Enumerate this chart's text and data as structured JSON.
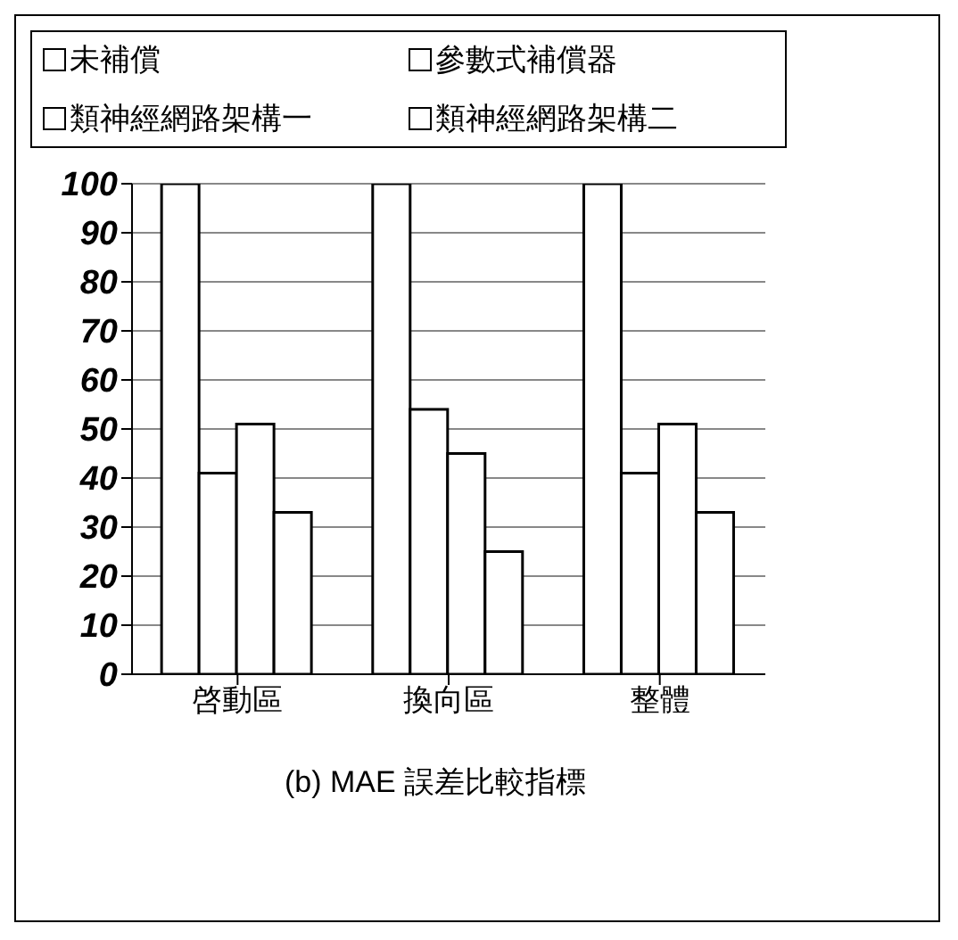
{
  "chart_data": {
    "type": "bar",
    "title": "(b) MAE 誤差比較指標",
    "categories": [
      "啓動區",
      "換向區",
      "整體"
    ],
    "series": [
      {
        "name": "未補償",
        "color": "#ffffff",
        "values": [
          100,
          100,
          100
        ]
      },
      {
        "name": "參數式補償器",
        "color": "#ffffff",
        "values": [
          41,
          54,
          41
        ]
      },
      {
        "name": "類神經網路架構一",
        "color": "#ffffff",
        "values": [
          51,
          45,
          51
        ]
      },
      {
        "name": "類神經網路架構二",
        "color": "#ffffff",
        "values": [
          33,
          25,
          33
        ]
      }
    ],
    "ylim": [
      0,
      100
    ],
    "yticks": [
      0,
      10,
      20,
      30,
      40,
      50,
      60,
      70,
      80,
      90,
      100
    ],
    "grid": "y",
    "legend": "top"
  }
}
